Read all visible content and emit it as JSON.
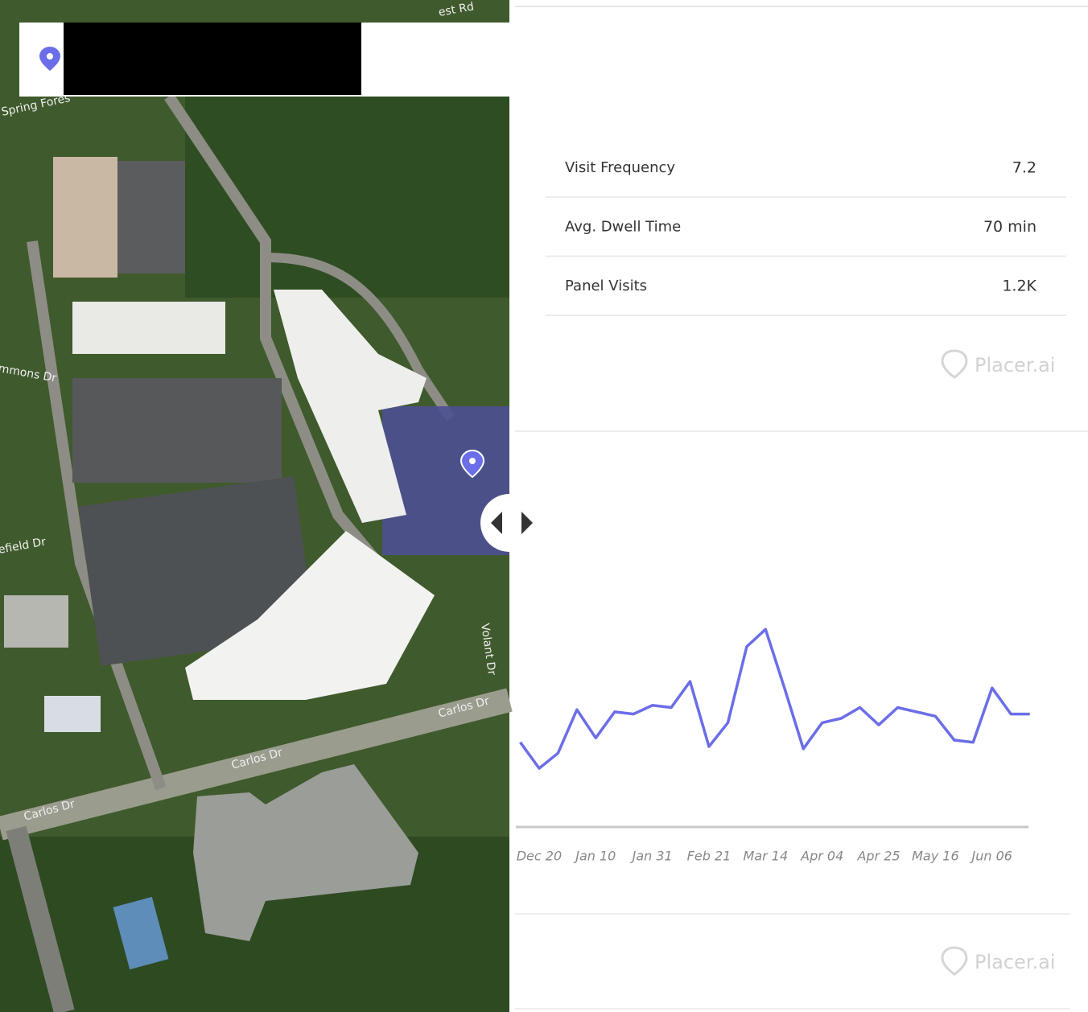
{
  "map": {
    "labels": [
      "est Rd",
      "Spring Fores",
      "mmons Dr",
      "efield Dr",
      "Carlos Dr",
      "Carlos Dr",
      "Carlos Dr",
      "Volant Dr"
    ]
  },
  "stats": [
    {
      "label": "Visit Frequency",
      "value": "7.2"
    },
    {
      "label": "Avg. Dwell Time",
      "value": "70 min"
    },
    {
      "label": "Panel Visits",
      "value": "1.2K"
    }
  ],
  "watermark": "Placer.ai",
  "chart_data": {
    "type": "line",
    "categories": [
      null,
      "Dec 20",
      null,
      null,
      "Jan 10",
      null,
      null,
      "Jan 31",
      null,
      null,
      "Feb 21",
      null,
      null,
      "Mar 14",
      null,
      null,
      "Apr 04",
      null,
      null,
      "Apr 25",
      null,
      null,
      "May 16",
      null,
      null,
      "Jun 06",
      null,
      null
    ],
    "series": [
      {
        "color": "#6b6ee8",
        "values": [
          39,
          27,
          34,
          54,
          41,
          53,
          52,
          56,
          55,
          67,
          37,
          48,
          83,
          91,
          64,
          36,
          48,
          50,
          55,
          47,
          55,
          53,
          51,
          40,
          39,
          64,
          52,
          52
        ]
      }
    ],
    "ylim": [
      0,
      100
    ]
  }
}
